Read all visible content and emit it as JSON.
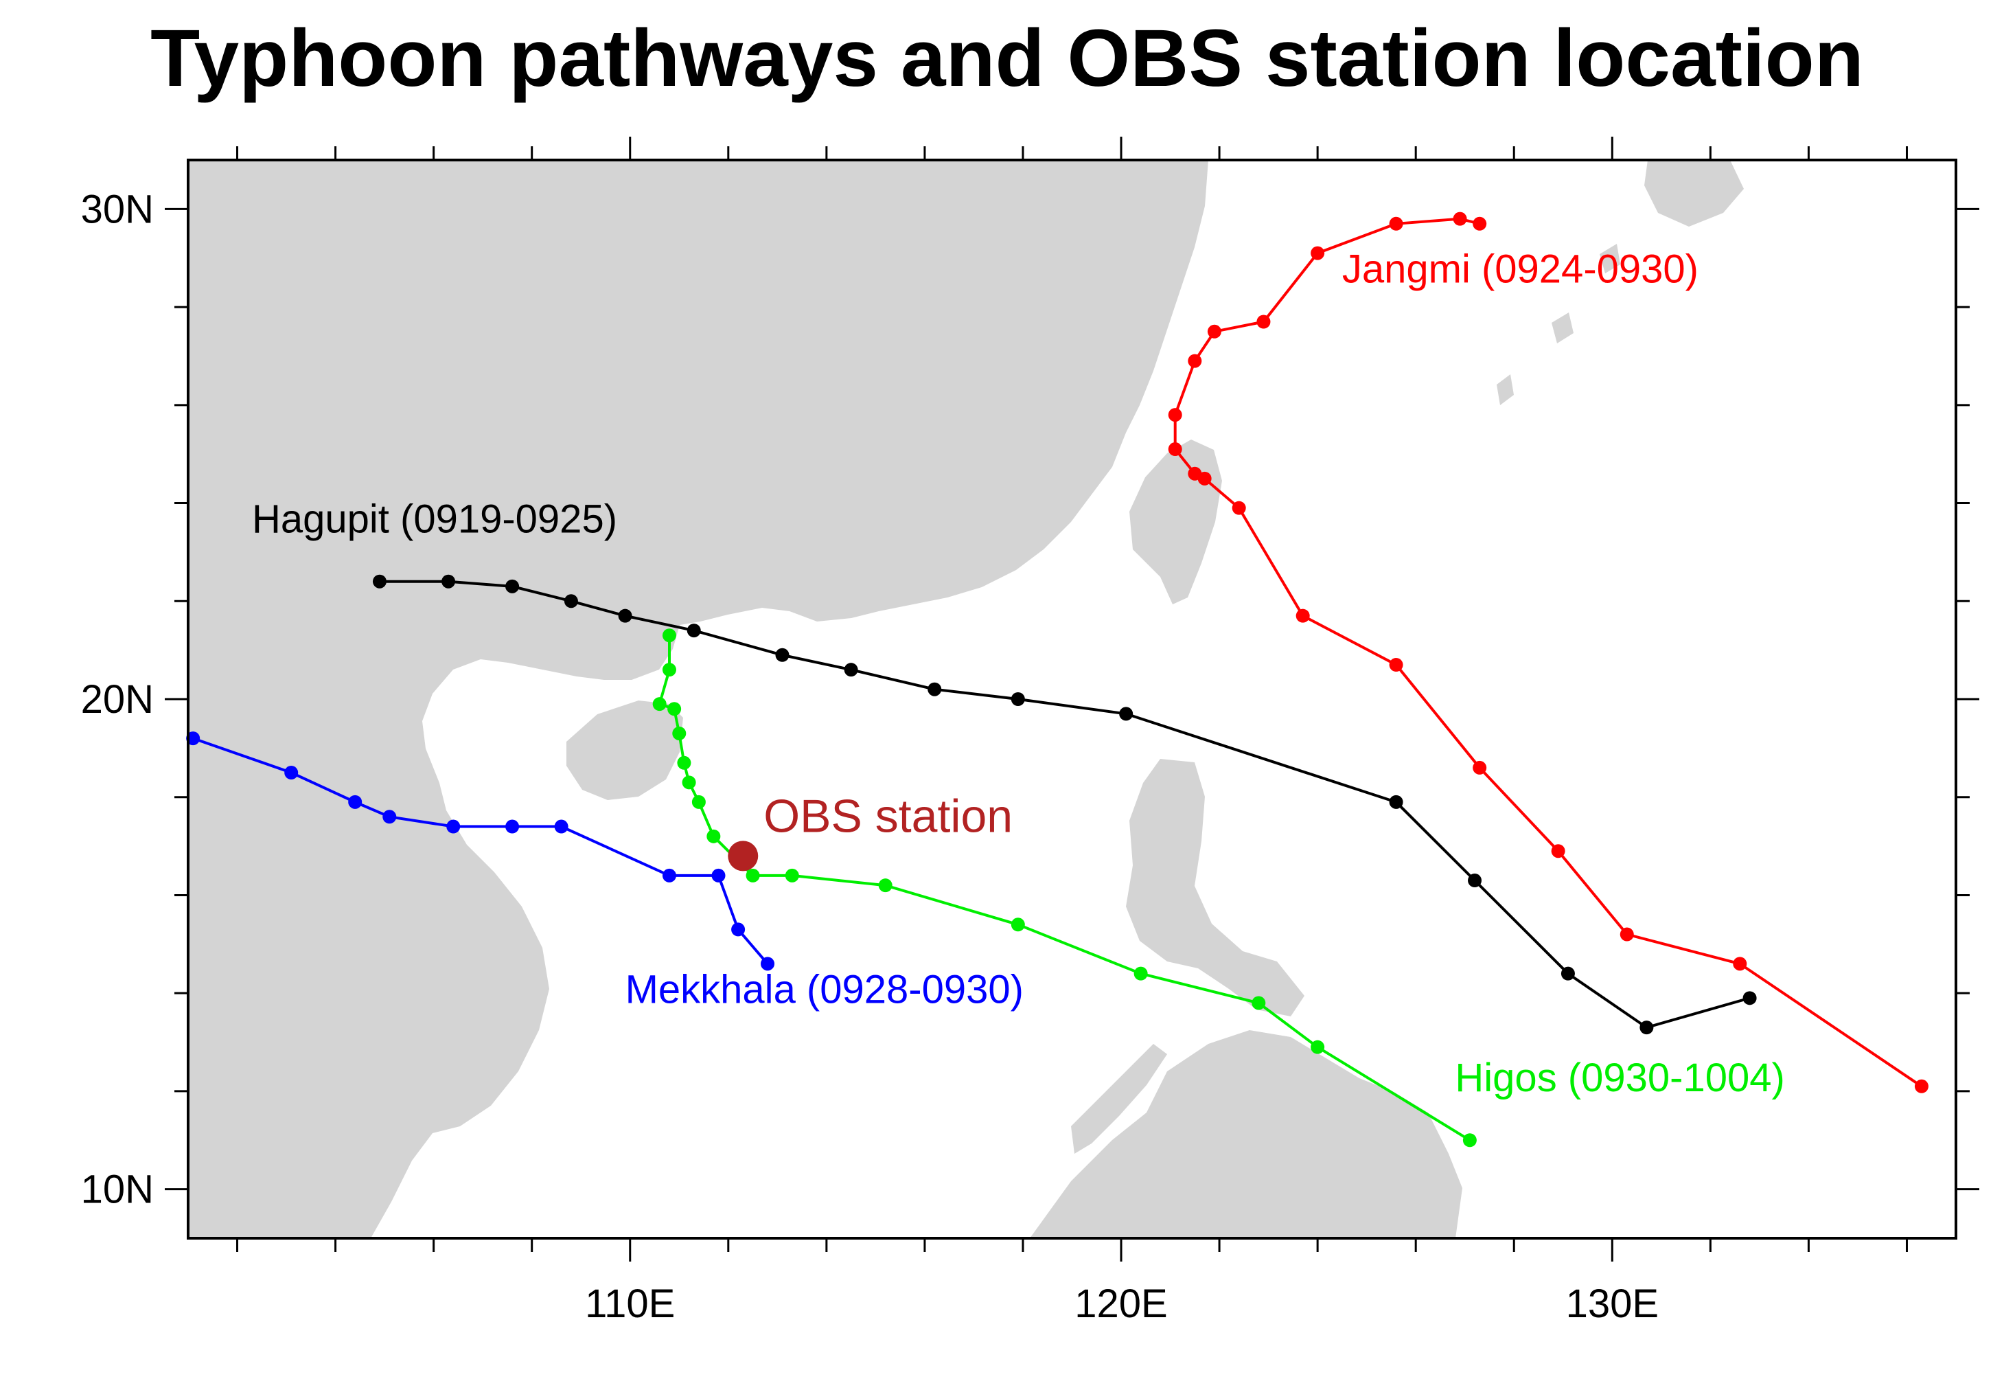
{
  "title": "Typhoon pathways and OBS station location",
  "map": {
    "lon_range": [
      101,
      137
    ],
    "lat_range": [
      9,
      31
    ],
    "x_ticks": [
      {
        "value": 110,
        "label": "110E"
      },
      {
        "value": 120,
        "label": "120E"
      },
      {
        "value": 130,
        "label": "130E"
      }
    ],
    "y_ticks": [
      {
        "value": 10,
        "label": "10N"
      },
      {
        "value": 20,
        "label": "20N"
      },
      {
        "value": 30,
        "label": "30N"
      }
    ],
    "minor_x_step": 2,
    "minor_y_step": 2,
    "land_color": "#d4d4d4",
    "ocean_color": "#ffffff"
  },
  "station": {
    "label": "OBS station",
    "lon": 112.3,
    "lat": 16.8,
    "color": "#b22222"
  },
  "tracks": [
    {
      "name": "Hagupit (0919-0925)",
      "color": "#000000",
      "label_pos": {
        "lon": 102.3,
        "lat": 23.4
      },
      "points": [
        [
          104.9,
          22.4
        ],
        [
          106.3,
          22.4
        ],
        [
          107.6,
          22.3
        ],
        [
          108.8,
          22.0
        ],
        [
          109.9,
          21.7
        ],
        [
          111.3,
          21.4
        ],
        [
          113.1,
          20.9
        ],
        [
          114.5,
          20.6
        ],
        [
          116.2,
          20.2
        ],
        [
          117.9,
          20.0
        ],
        [
          120.1,
          19.7
        ],
        [
          125.6,
          17.9
        ],
        [
          127.2,
          16.3
        ],
        [
          129.1,
          14.4
        ],
        [
          130.7,
          13.3
        ],
        [
          132.8,
          13.9
        ]
      ]
    },
    {
      "name": "Jangmi (0924-0930)",
      "color": "#ff0000",
      "label_pos": {
        "lon": 124.5,
        "lat": 28.5
      },
      "points": [
        [
          127.3,
          29.7
        ],
        [
          126.9,
          29.8
        ],
        [
          125.6,
          29.7
        ],
        [
          124.0,
          29.1
        ],
        [
          122.9,
          27.7
        ],
        [
          121.9,
          27.5
        ],
        [
          121.5,
          26.9
        ],
        [
          121.1,
          25.8
        ],
        [
          121.1,
          25.1
        ],
        [
          121.5,
          24.6
        ],
        [
          121.7,
          24.5
        ],
        [
          122.4,
          23.9
        ],
        [
          123.7,
          21.7
        ],
        [
          125.6,
          20.7
        ],
        [
          127.3,
          18.6
        ],
        [
          128.9,
          16.9
        ],
        [
          130.3,
          15.2
        ],
        [
          132.6,
          14.6
        ],
        [
          136.3,
          12.1
        ]
      ]
    },
    {
      "name": "Mekkhala (0928-0930)",
      "color": "#0000ff",
      "label_pos": {
        "lon": 109.9,
        "lat": 13.8
      },
      "points": [
        [
          101.1,
          19.2
        ],
        [
          103.1,
          18.5
        ],
        [
          104.4,
          17.9
        ],
        [
          105.1,
          17.6
        ],
        [
          106.4,
          17.4
        ],
        [
          107.6,
          17.4
        ],
        [
          108.6,
          17.4
        ],
        [
          110.8,
          16.4
        ],
        [
          111.8,
          16.4
        ],
        [
          112.2,
          15.3
        ],
        [
          112.8,
          14.6
        ]
      ]
    },
    {
      "name": "Higos (0930-1004)",
      "color": "#00ee00",
      "label_pos": {
        "lon": 126.8,
        "lat": 12.0
      },
      "points": [
        [
          110.8,
          21.3
        ],
        [
          110.8,
          20.6
        ],
        [
          110.6,
          19.9
        ],
        [
          110.9,
          19.8
        ],
        [
          111.0,
          19.3
        ],
        [
          111.1,
          18.7
        ],
        [
          111.2,
          18.3
        ],
        [
          111.4,
          17.9
        ],
        [
          111.7,
          17.2
        ],
        [
          112.5,
          16.4
        ],
        [
          113.3,
          16.4
        ],
        [
          115.2,
          16.2
        ],
        [
          117.9,
          15.4
        ],
        [
          120.4,
          14.4
        ],
        [
          122.8,
          13.8
        ],
        [
          124.0,
          12.9
        ],
        [
          127.1,
          11.0
        ]
      ]
    }
  ]
}
